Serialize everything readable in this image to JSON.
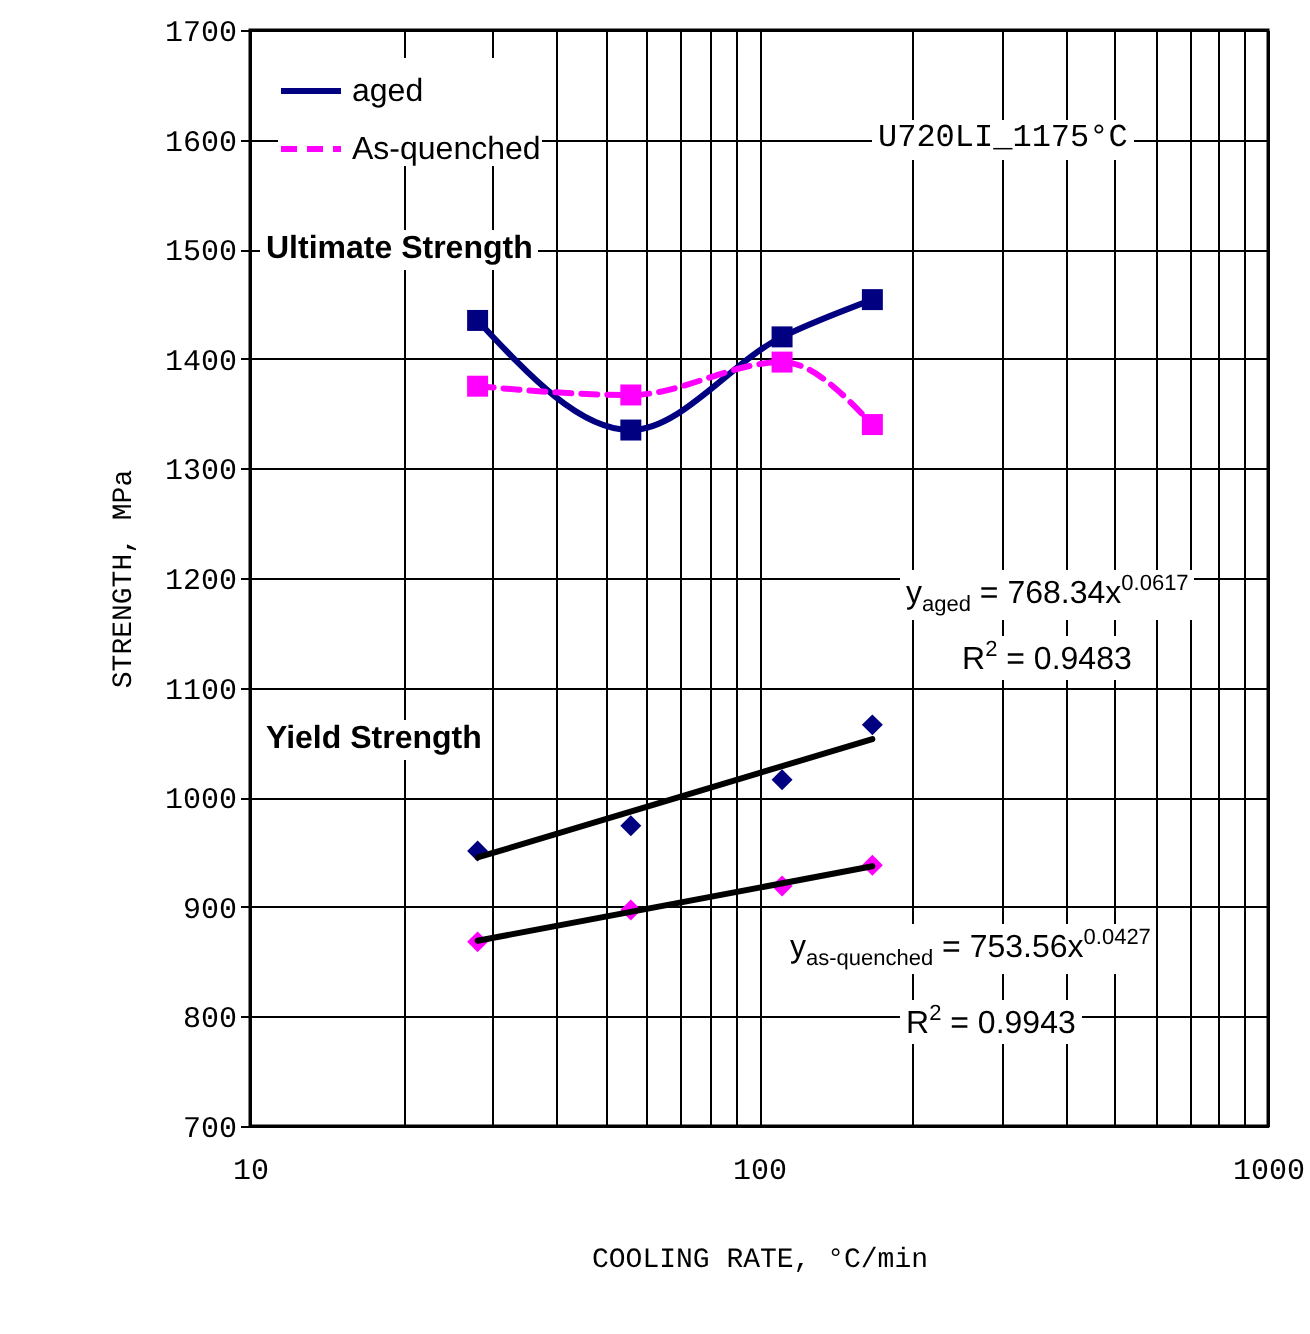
{
  "chart_data": {
    "type": "line",
    "xlabel": "COOLING RATE, °C/min",
    "ylabel": "STRENGTH, MPa",
    "log": "x",
    "grid": true,
    "legend": "top left",
    "xlim": [
      10,
      1000
    ],
    "xticks": [
      10,
      {
        "value": 20,
        "label": null
      },
      {
        "value": 30,
        "label": null
      },
      {
        "value": 40,
        "label": null
      },
      {
        "value": 50,
        "label": null
      },
      {
        "value": 60,
        "label": null
      },
      {
        "value": 70,
        "label": null
      },
      {
        "value": 80,
        "label": null
      },
      {
        "value": 90,
        "label": null
      },
      100,
      {
        "value": 200,
        "label": null
      },
      {
        "value": 300,
        "label": null
      },
      {
        "value": 400,
        "label": null
      },
      {
        "value": 500,
        "label": null
      },
      {
        "value": 600,
        "label": null
      },
      {
        "value": 700,
        "label": null
      },
      {
        "value": 800,
        "label": null
      },
      {
        "value": 900,
        "label": null
      },
      1000
    ],
    "ylim": [
      700,
      1700
    ],
    "yticks": [
      700,
      800,
      900,
      1000,
      1100,
      1200,
      1300,
      1400,
      1500,
      1600,
      1700
    ],
    "series": [
      {
        "name": "aged",
        "marker": "square",
        "color": "#000080",
        "x": [
          28,
          56,
          111,
          167
        ],
        "values": [
          1435,
          1335,
          1420,
          1454
        ]
      },
      {
        "name": "As-quenched",
        "line_style": "dashed",
        "marker": "square",
        "color": "#ff00ff",
        "x": [
          28,
          56,
          111,
          167
        ],
        "values": [
          1375,
          1367,
          1397,
          1340
        ]
      },
      {
        "type": "scatter",
        "marker": "diamond",
        "color": "#000080",
        "x": [
          28,
          56,
          111,
          167
        ],
        "values": [
          951,
          974,
          1016,
          1066
        ]
      },
      {
        "type": "scatter",
        "marker": "diamond",
        "color": "#ff00ff",
        "x": [
          28,
          56,
          111,
          167
        ],
        "values": [
          868,
          897,
          919,
          938
        ]
      },
      {
        "marker": "none",
        "color": "#000000",
        "x": [
          28,
          167
        ],
        "values": [
          945,
          1053
        ]
      },
      {
        "marker": "none",
        "color": "#000000",
        "x": [
          28,
          167
        ],
        "values": [
          869,
          937
        ]
      }
    ],
    "annotations": [
      "Ultimate Strength",
      "Yield Strength",
      "U720LI_1175°C",
      "y$_{aged}$ = 768.34x$^{0.0617}$",
      "R$^{2}$ = 0.9483",
      "y$_{as-quenched}$ = 753.56x$^{0.0427}$",
      "R$^{2}$ = 0.9943"
    ]
  }
}
